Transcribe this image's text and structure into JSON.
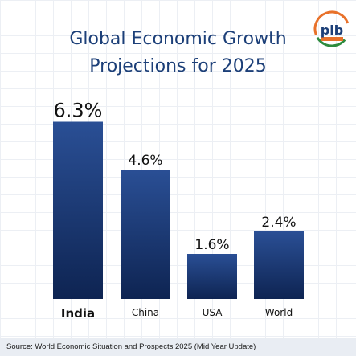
{
  "title_line1": "Global Economic Growth",
  "title_line2": "Projections for 2025",
  "logo_text": "pib",
  "source": "Source: World Economic Situation and Prospects 2025 (Mid Year Update)",
  "colors": {
    "bar_top": "#2a4f95",
    "bar_bottom": "#0e2452",
    "title": "#1c3f78",
    "logo_orange": "#e8712a",
    "logo_green": "#2e8b3e"
  },
  "chart_data": {
    "type": "bar",
    "title": "Global Economic Growth Projections for 2025",
    "categories": [
      "India",
      "China",
      "USA",
      "World"
    ],
    "values": [
      6.3,
      4.6,
      1.6,
      2.4
    ],
    "value_labels": [
      "6.3%",
      "4.6%",
      "1.6%",
      "2.4%"
    ],
    "unit": "%",
    "ylim": [
      0,
      7.2
    ],
    "grid": false,
    "legend": "none"
  }
}
